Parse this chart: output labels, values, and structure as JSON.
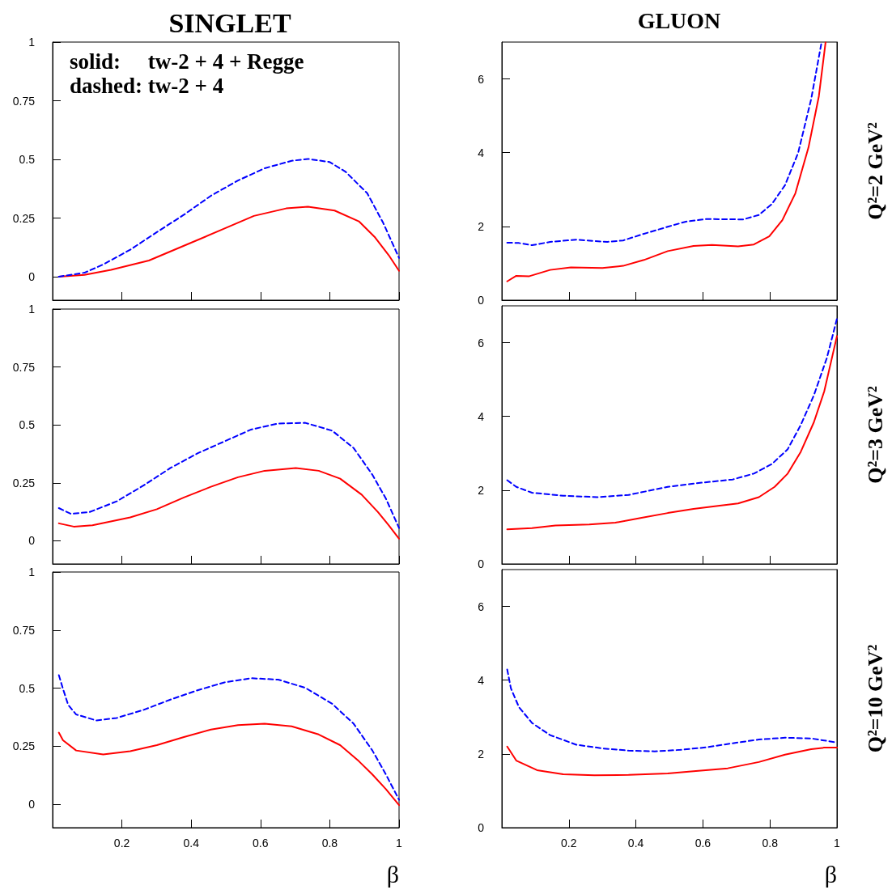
{
  "chart_data": [
    {
      "type": "line",
      "title": "SINGLET",
      "annotations": [
        "solid:     tw-2 + 4 + Regge",
        "dashed: tw-2 + 4"
      ],
      "xlim": [
        0,
        1
      ],
      "xticks": [
        0.2,
        0.4,
        0.6,
        0.8,
        1
      ],
      "ylim": [
        -0.1,
        1
      ],
      "yticks": [
        0,
        0.25,
        0.5,
        0.75,
        1
      ],
      "tick_labels": "y",
      "grid": false,
      "marker": "none",
      "series": [
        {
          "color": "#ff0000",
          "line_style": "solid",
          "x": [
            0.018,
            0.092,
            0.169,
            0.278,
            0.379,
            0.48,
            0.581,
            0.674,
            0.737,
            0.814,
            0.884,
            0.931,
            0.97,
            1
          ],
          "values": [
            0,
            0.008,
            0.029,
            0.069,
            0.132,
            0.195,
            0.259,
            0.291,
            0.298,
            0.282,
            0.236,
            0.167,
            0.092,
            0.025
          ]
        },
        {
          "color": "#0000ff",
          "line_style": "dashed",
          "x": [
            0.018,
            0.092,
            0.146,
            0.224,
            0.301,
            0.379,
            0.457,
            0.535,
            0.612,
            0.69,
            0.737,
            0.799,
            0.845,
            0.908,
            0.954,
            1
          ],
          "values": [
            0,
            0.017,
            0.052,
            0.115,
            0.19,
            0.264,
            0.345,
            0.41,
            0.462,
            0.494,
            0.502,
            0.489,
            0.448,
            0.356,
            0.23,
            0.08
          ]
        }
      ]
    },
    {
      "type": "line",
      "title": "GLUON",
      "y2label": "Q²=2 GeV²",
      "xlim": [
        0,
        1
      ],
      "xticks": [
        0.2,
        0.4,
        0.6,
        0.8,
        1
      ],
      "ylim": [
        0,
        7
      ],
      "yticks": [
        0,
        2,
        4,
        6
      ],
      "tick_labels": "y",
      "grid": false,
      "marker": "none",
      "series": [
        {
          "color": "#ff0000",
          "line_style": "solid",
          "x": [
            0.016,
            0.043,
            0.082,
            0.144,
            0.206,
            0.3,
            0.362,
            0.424,
            0.495,
            0.572,
            0.627,
            0.705,
            0.752,
            0.798,
            0.837,
            0.876,
            0.915,
            0.946,
            0.966
          ],
          "values": [
            0.51,
            0.66,
            0.65,
            0.82,
            0.89,
            0.87,
            0.93,
            1.09,
            1.33,
            1.47,
            1.5,
            1.46,
            1.51,
            1.73,
            2.17,
            2.9,
            4.14,
            5.53,
            6.99
          ]
        },
        {
          "color": "#0000ff",
          "line_style": "dashed",
          "x": [
            0.016,
            0.051,
            0.09,
            0.144,
            0.222,
            0.315,
            0.362,
            0.424,
            0.495,
            0.549,
            0.611,
            0.72,
            0.767,
            0.806,
            0.845,
            0.884,
            0.923,
            0.954
          ],
          "values": [
            1.56,
            1.55,
            1.49,
            1.58,
            1.64,
            1.58,
            1.62,
            1.8,
            1.99,
            2.13,
            2.2,
            2.19,
            2.31,
            2.61,
            3.12,
            3.99,
            5.45,
            6.99
          ]
        }
      ]
    },
    {
      "type": "line",
      "xlim": [
        0,
        1
      ],
      "xticks": [
        0.2,
        0.4,
        0.6,
        0.8,
        1
      ],
      "ylim": [
        -0.1,
        1
      ],
      "yticks": [
        0,
        0.25,
        0.5,
        0.75,
        1
      ],
      "tick_labels": "y",
      "grid": false,
      "marker": "none",
      "series": [
        {
          "color": "#ff0000",
          "line_style": "solid",
          "x": [
            0.018,
            0.061,
            0.115,
            0.224,
            0.301,
            0.379,
            0.457,
            0.535,
            0.612,
            0.702,
            0.768,
            0.83,
            0.892,
            0.939,
            0.97,
            1
          ],
          "values": [
            0.075,
            0.061,
            0.067,
            0.101,
            0.136,
            0.187,
            0.233,
            0.274,
            0.302,
            0.314,
            0.302,
            0.268,
            0.199,
            0.124,
            0.067,
            0.009
          ]
        },
        {
          "color": "#0000ff",
          "line_style": "dashed",
          "x": [
            0.018,
            0.053,
            0.107,
            0.185,
            0.263,
            0.34,
            0.418,
            0.496,
            0.573,
            0.651,
            0.729,
            0.807,
            0.869,
            0.923,
            0.962,
            1
          ],
          "values": [
            0.141,
            0.116,
            0.124,
            0.17,
            0.239,
            0.314,
            0.377,
            0.429,
            0.48,
            0.506,
            0.509,
            0.475,
            0.4,
            0.285,
            0.182,
            0.055
          ]
        }
      ]
    },
    {
      "type": "line",
      "y2label": "Q²=3 GeV²",
      "xlim": [
        0,
        1
      ],
      "xticks": [
        0.2,
        0.4,
        0.6,
        0.8,
        1
      ],
      "ylim": [
        0,
        7
      ],
      "yticks": [
        0,
        2,
        4,
        6
      ],
      "tick_labels": "y",
      "grid": false,
      "marker": "none",
      "series": [
        {
          "color": "#ff0000",
          "line_style": "solid",
          "x": [
            0.016,
            0.09,
            0.16,
            0.261,
            0.339,
            0.417,
            0.495,
            0.572,
            0.65,
            0.705,
            0.767,
            0.814,
            0.853,
            0.892,
            0.931,
            0.962,
            1
          ],
          "values": [
            0.94,
            0.97,
            1.04,
            1.07,
            1.12,
            1.25,
            1.38,
            1.49,
            1.58,
            1.64,
            1.81,
            2.09,
            2.45,
            3.04,
            3.84,
            4.68,
            6.18
          ]
        },
        {
          "color": "#0000ff",
          "line_style": "dashed",
          "x": [
            0.016,
            0.043,
            0.09,
            0.183,
            0.284,
            0.378,
            0.495,
            0.572,
            0.689,
            0.752,
            0.806,
            0.853,
            0.892,
            0.931,
            0.97,
            1
          ],
          "values": [
            2.27,
            2.09,
            1.93,
            1.85,
            1.81,
            1.87,
            2.09,
            2.18,
            2.29,
            2.45,
            2.71,
            3.11,
            3.77,
            4.57,
            5.59,
            6.65
          ]
        }
      ]
    },
    {
      "type": "line",
      "xlabel": "β",
      "xlim": [
        0,
        1
      ],
      "xticks": [
        0.2,
        0.4,
        0.6,
        0.8,
        1
      ],
      "ylim": [
        -0.1,
        1
      ],
      "yticks": [
        0,
        0.25,
        0.5,
        0.75,
        1
      ],
      "grid": false,
      "marker": "none",
      "series": [
        {
          "color": "#ff0000",
          "line_style": "solid",
          "x": [
            0.018,
            0.03,
            0.068,
            0.146,
            0.224,
            0.301,
            0.379,
            0.457,
            0.535,
            0.612,
            0.69,
            0.768,
            0.83,
            0.884,
            0.923,
            0.962,
            1
          ],
          "values": [
            0.309,
            0.276,
            0.232,
            0.215,
            0.229,
            0.255,
            0.29,
            0.322,
            0.341,
            0.347,
            0.336,
            0.301,
            0.255,
            0.186,
            0.129,
            0.066,
            -0.003
          ]
        },
        {
          "color": "#0000ff",
          "line_style": "dashed",
          "x": [
            0.018,
            0.03,
            0.045,
            0.068,
            0.127,
            0.185,
            0.263,
            0.34,
            0.418,
            0.496,
            0.573,
            0.651,
            0.729,
            0.807,
            0.869,
            0.923,
            0.962,
            1
          ],
          "values": [
            0.556,
            0.497,
            0.428,
            0.387,
            0.361,
            0.372,
            0.407,
            0.451,
            0.491,
            0.525,
            0.543,
            0.537,
            0.502,
            0.433,
            0.347,
            0.232,
            0.129,
            0.02
          ]
        }
      ]
    },
    {
      "type": "line",
      "xlabel": "β",
      "y2label": "Q²=10 GeV²",
      "xlim": [
        0,
        1
      ],
      "xticks": [
        0.2,
        0.4,
        0.6,
        0.8,
        1
      ],
      "ylim": [
        0,
        7
      ],
      "yticks": [
        0,
        2,
        4,
        6
      ],
      "grid": false,
      "marker": "none",
      "series": [
        {
          "color": "#ff0000",
          "line_style": "solid",
          "x": [
            0.016,
            0.043,
            0.105,
            0.183,
            0.276,
            0.378,
            0.495,
            0.572,
            0.674,
            0.767,
            0.845,
            0.923,
            0.962,
            1
          ],
          "values": [
            2.2,
            1.82,
            1.56,
            1.45,
            1.42,
            1.43,
            1.47,
            1.53,
            1.61,
            1.78,
            1.98,
            2.13,
            2.17,
            2.17
          ]
        },
        {
          "color": "#0000ff",
          "line_style": "dashed",
          "x": [
            0.016,
            0.027,
            0.051,
            0.09,
            0.144,
            0.222,
            0.3,
            0.378,
            0.456,
            0.533,
            0.611,
            0.689,
            0.767,
            0.845,
            0.923,
            1
          ],
          "values": [
            4.29,
            3.78,
            3.27,
            2.84,
            2.51,
            2.25,
            2.15,
            2.09,
            2.07,
            2.11,
            2.18,
            2.29,
            2.39,
            2.44,
            2.42,
            2.31
          ]
        }
      ]
    }
  ]
}
